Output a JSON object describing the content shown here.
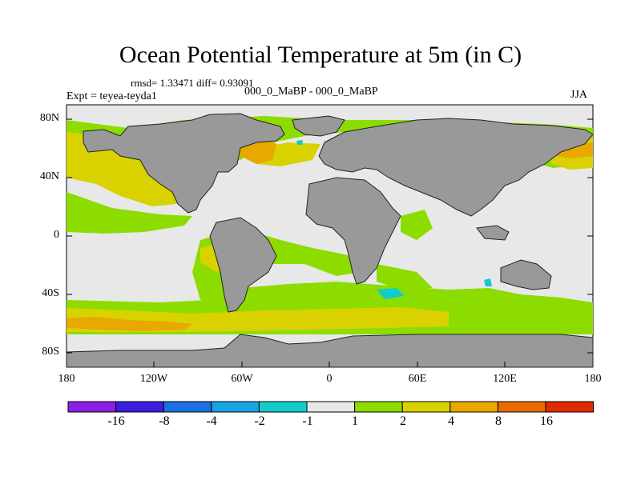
{
  "title": "Ocean Potential Temperature at 5m (in C)",
  "stats": "rmsd= 1.33471 diff= 0.93091",
  "experiment": "Expt = teyea-teyda1",
  "subtitle": "000_0_MaBP - 000_0_MaBP",
  "season": "JJA",
  "lat_labels": [
    "80N",
    "40N",
    "0",
    "40S",
    "80S"
  ],
  "lon_labels": [
    "180",
    "120W",
    "60W",
    "0",
    "60E",
    "120E",
    "180"
  ],
  "legend": {
    "labels": [
      "-16",
      "-8",
      "-4",
      "-2",
      "-1",
      "1",
      "2",
      "4",
      "8",
      "16"
    ],
    "colors": [
      "#8c1fe6",
      "#3b1fe0",
      "#1e6fe0",
      "#18a4e0",
      "#12cccc",
      "#e8e8e8",
      "#8ddc00",
      "#d9d200",
      "#e8a800",
      "#e86a00",
      "#e02a00"
    ]
  },
  "colors": {
    "land": "#999999",
    "ocean_neutral": "#e8e8e8",
    "warm_1": "#8ddc00",
    "warm_2": "#d9d200",
    "warm_3": "#e8a800",
    "cool_1": "#12cccc"
  }
}
